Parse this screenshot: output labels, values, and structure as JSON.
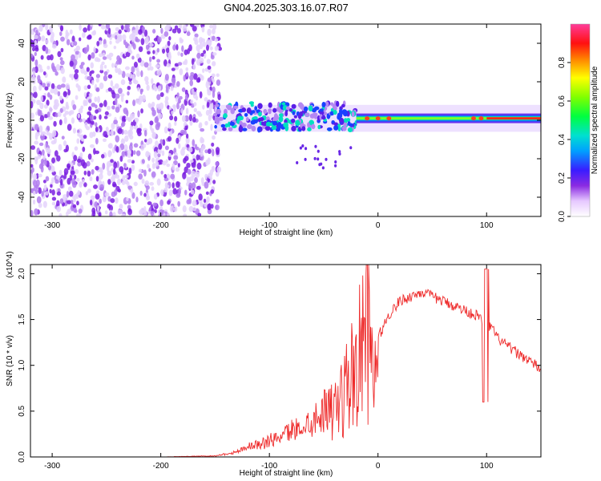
{
  "figure_title": "GN04.2025.303.16.07.R07",
  "colors": {
    "snr_line": "#ee2a2a",
    "axis": "#000000",
    "background": "#ffffff"
  },
  "chart_data": [
    {
      "type": "heatmap",
      "name": "spectrogram",
      "title": "GN04.2025.303.16.07.R07",
      "xlabel": "Height of straight line (km)",
      "ylabel": "Frequency (Hz)",
      "xlim": [
        -320,
        150
      ],
      "ylim": [
        -50,
        50
      ],
      "xticks": [
        -300,
        -200,
        -100,
        0,
        100
      ],
      "yticks": [
        -40,
        -20,
        0,
        20,
        40
      ],
      "colorbar": {
        "label": "Normalized spectral amplitude",
        "range": [
          0,
          1
        ],
        "ticks": [
          "0.0",
          "0.2",
          "0.4",
          "0.6",
          "0.8"
        ],
        "colormap": "rainbow (white-violet-blue-cyan-green-yellow-red-magenta)"
      },
      "regions": [
        {
          "x_range": [
            -320,
            -145
          ],
          "description": "broadband noise, low amplitude (~0.1-0.3)"
        },
        {
          "x_range": [
            -150,
            -20
          ],
          "freq_center": 0,
          "description": "scattered strong components within approx +/-10 Hz"
        },
        {
          "x_range": [
            -20,
            150
          ],
          "freq_center": 1,
          "description": "narrow concentrated band, amplitude up to ~1.0"
        }
      ]
    },
    {
      "type": "line",
      "name": "snr",
      "xlabel": "Height of straight line (km)",
      "ylabel": "SNR (10 * v/v)",
      "scale_note": "(x10^4)",
      "xlim": [
        -320,
        150
      ],
      "ylim": [
        0,
        2.1
      ],
      "xticks": [
        -300,
        -200,
        -100,
        0,
        100
      ],
      "yticks": [
        "0.0",
        "0.5",
        "1.0",
        "1.5",
        "2.0"
      ],
      "series": [
        {
          "name": "SNR",
          "x": [
            -320,
            -250,
            -200,
            -150,
            -130,
            -120,
            -100,
            -80,
            -60,
            -45,
            -35,
            -25,
            -15,
            -10,
            -5,
            0,
            10,
            20,
            30,
            40,
            50,
            60,
            70,
            80,
            90,
            95,
            100,
            105,
            110,
            120,
            130,
            140,
            150
          ],
          "y": [
            0.0,
            0.0,
            0.0,
            0.01,
            0.05,
            0.1,
            0.15,
            0.25,
            0.35,
            0.5,
            0.7,
            1.0,
            1.3,
            1.55,
            0.9,
            1.3,
            1.55,
            1.7,
            1.75,
            1.8,
            1.75,
            1.7,
            1.65,
            1.6,
            1.55,
            1.5,
            1.45,
            1.4,
            1.3,
            1.2,
            1.12,
            1.05,
            0.95
          ]
        }
      ]
    }
  ]
}
